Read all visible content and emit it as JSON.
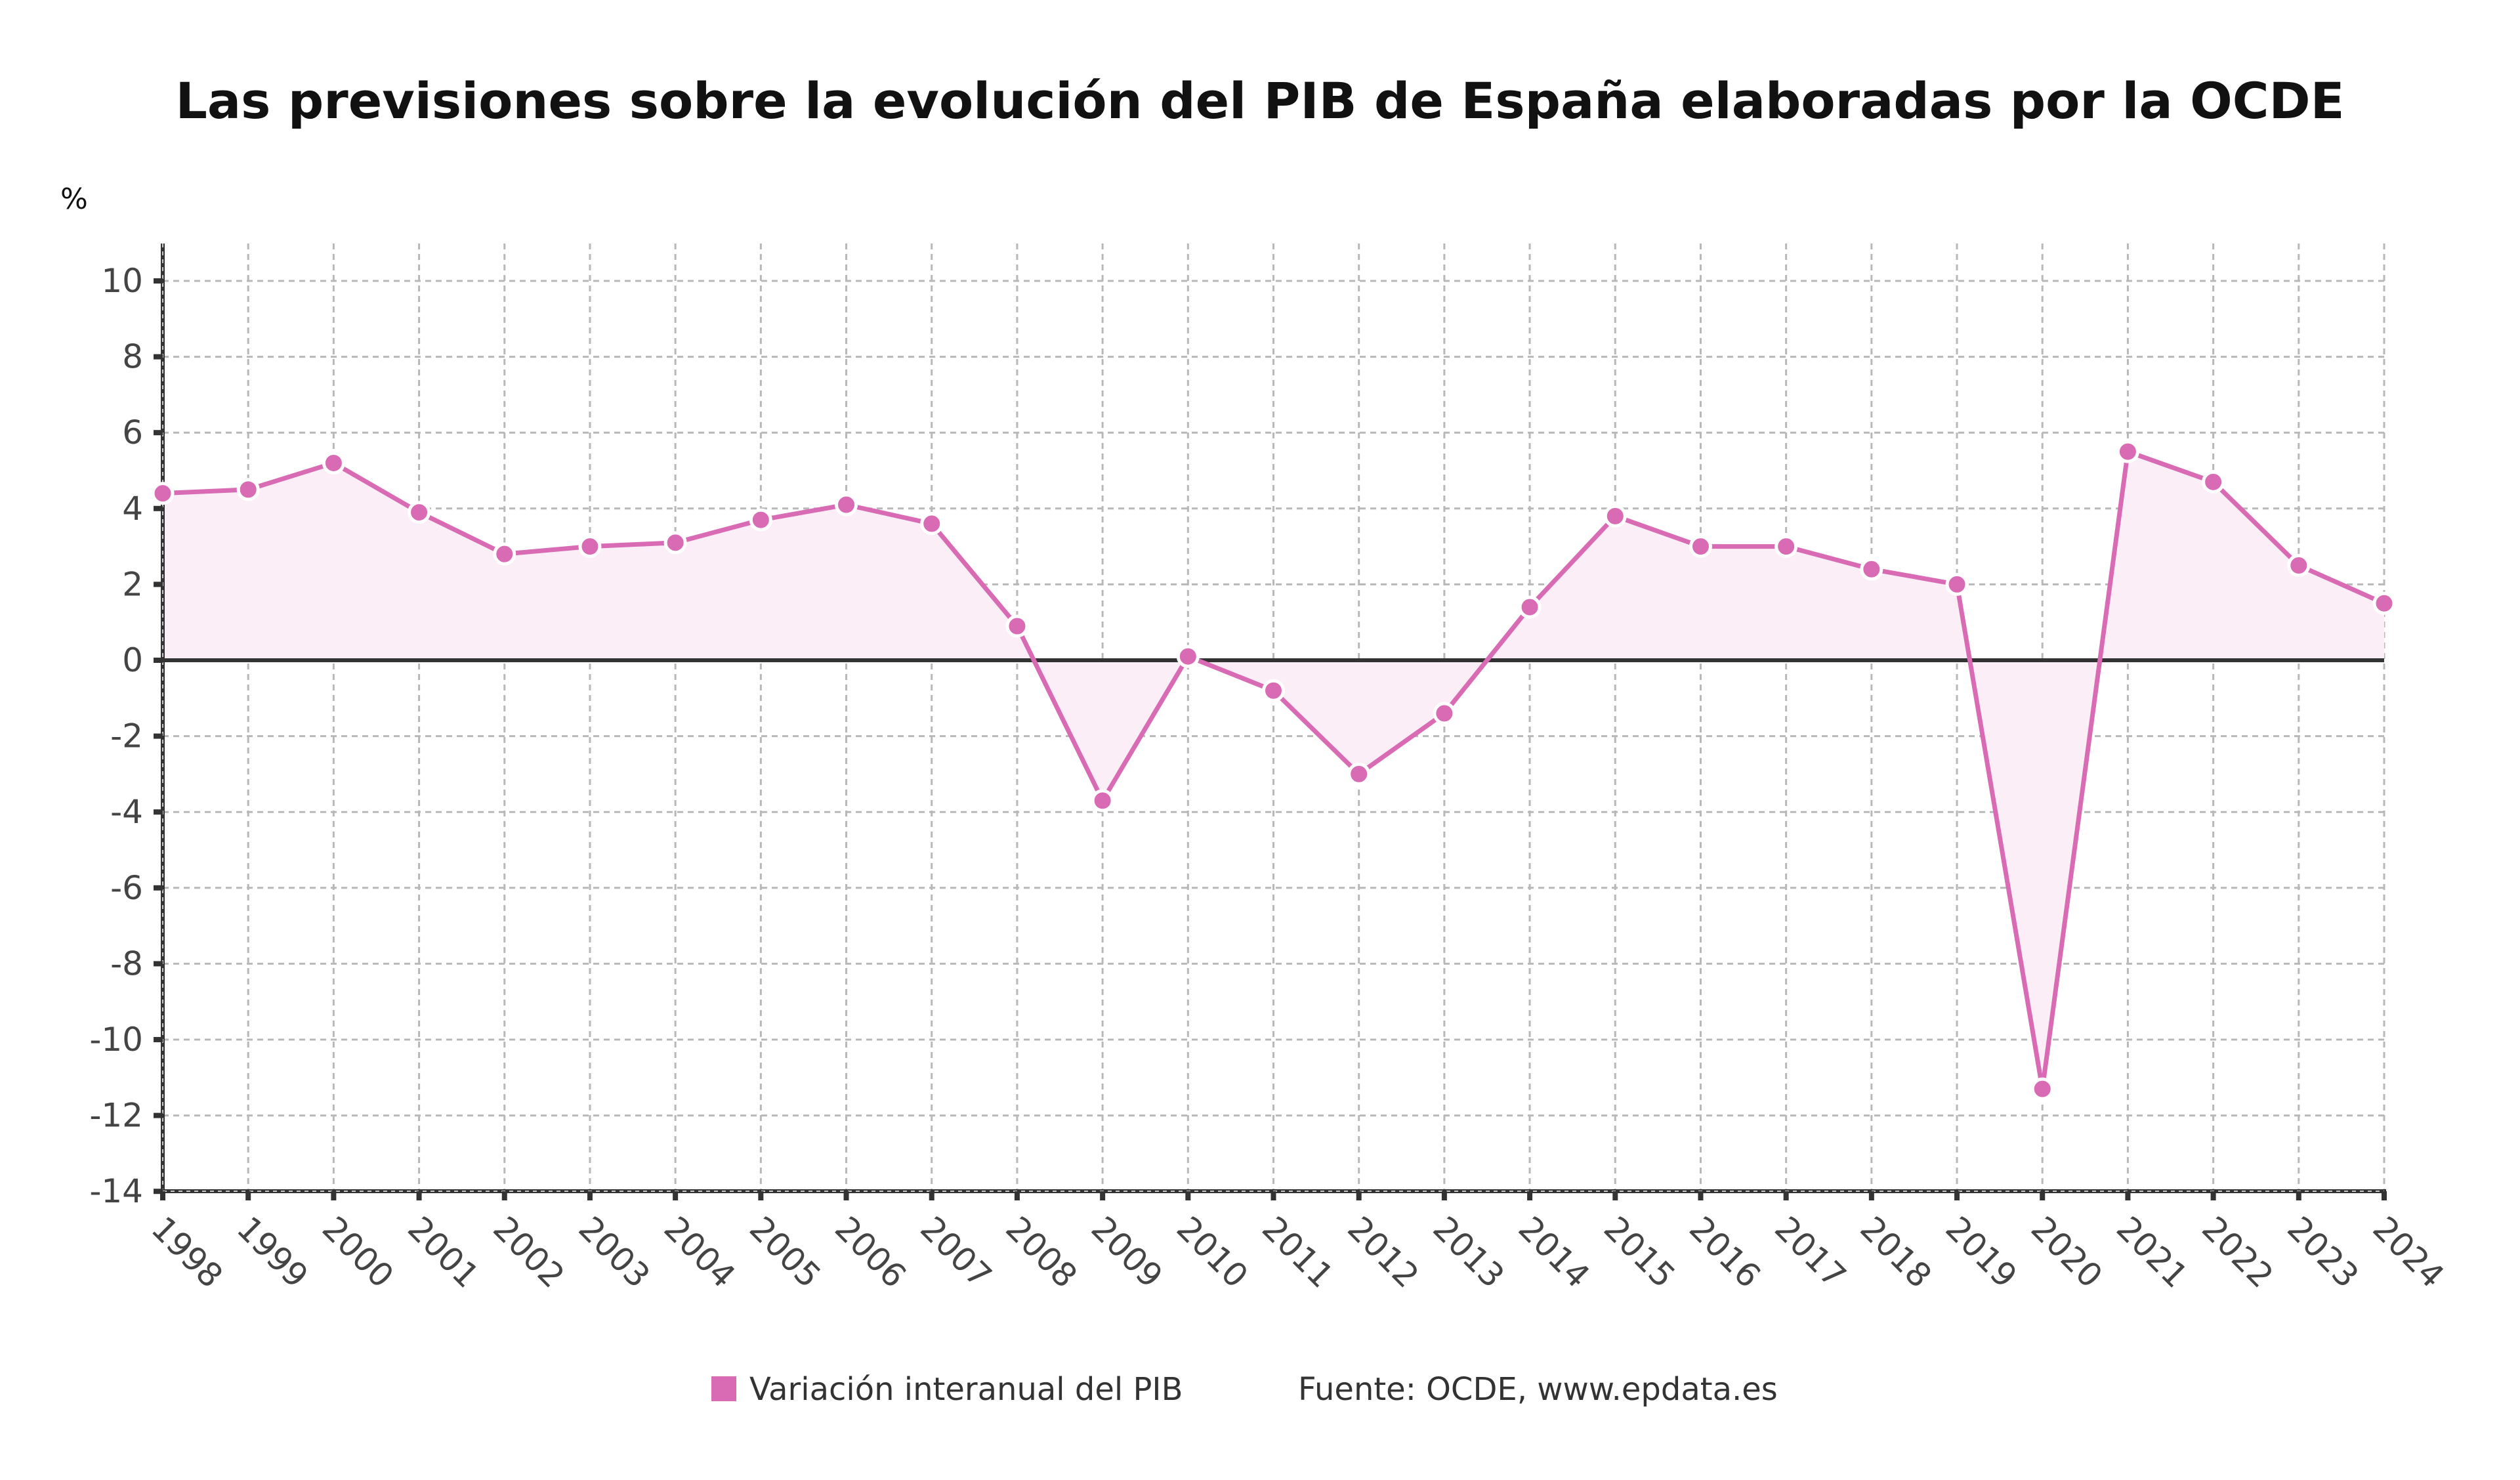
{
  "chart_data": {
    "type": "line",
    "title": "Las previsiones sobre la evolución del PIB de España elaboradas por la OCDE",
    "ylabel": "%",
    "xlabel": "",
    "ylim": [
      -14,
      10
    ],
    "yticks": [
      10,
      8,
      6,
      4,
      2,
      0,
      -2,
      -4,
      -6,
      -8,
      -10,
      -12,
      -14
    ],
    "grid": true,
    "x": [
      "1998",
      "1999",
      "2000",
      "2001",
      "2002",
      "2003",
      "2004",
      "2005",
      "2006",
      "2007",
      "2008",
      "2009",
      "2010",
      "2011",
      "2012",
      "2013",
      "2014",
      "2015",
      "2016",
      "2017",
      "2018",
      "2019",
      "2020",
      "2021",
      "2022",
      "2023",
      "2024"
    ],
    "series": [
      {
        "name": "Variación interanual del PIB",
        "color": "#d86bb4",
        "fill": "#fbeef6",
        "values": [
          4.4,
          4.5,
          5.2,
          3.9,
          2.8,
          3.0,
          3.1,
          3.7,
          4.1,
          3.6,
          0.9,
          -3.7,
          0.1,
          -0.8,
          -3.0,
          -1.4,
          1.4,
          3.8,
          3.0,
          3.0,
          2.4,
          2.0,
          -11.3,
          5.5,
          4.7,
          2.5,
          1.5
        ]
      }
    ],
    "legend_position": "bottom-center",
    "source": "Fuente: OCDE, www.epdata.es"
  }
}
